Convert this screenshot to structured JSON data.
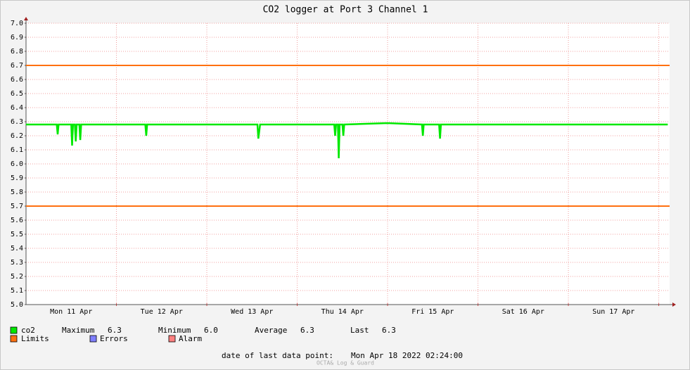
{
  "chart_data": {
    "type": "line",
    "title": "CO2 logger at Port 3 Channel 1",
    "x": [
      0,
      0.34,
      0.35,
      0.36,
      0.5,
      0.51,
      0.52,
      0.54,
      0.55,
      0.56,
      0.59,
      0.6,
      0.61,
      1.0,
      1.32,
      1.33,
      1.34,
      2.0,
      2.56,
      2.57,
      2.59,
      3.0,
      3.41,
      3.42,
      3.43,
      3.45,
      3.46,
      3.47,
      3.5,
      3.51,
      3.52,
      4.0,
      4.38,
      4.39,
      4.4,
      4.57,
      4.58,
      4.59,
      5.0,
      6.0,
      7.0,
      7.1
    ],
    "series": [
      {
        "name": "co2",
        "color": "#00e800",
        "values": [
          6.28,
          6.28,
          6.21,
          6.28,
          6.28,
          6.13,
          6.28,
          6.28,
          6.16,
          6.28,
          6.28,
          6.17,
          6.28,
          6.28,
          6.28,
          6.2,
          6.28,
          6.28,
          6.28,
          6.18,
          6.28,
          6.28,
          6.28,
          6.2,
          6.28,
          6.28,
          6.04,
          6.28,
          6.28,
          6.2,
          6.28,
          6.29,
          6.28,
          6.2,
          6.28,
          6.28,
          6.18,
          6.28,
          6.28,
          6.28,
          6.28,
          6.28
        ]
      }
    ],
    "limits": {
      "name": "Limits",
      "color": "#ff7010",
      "levels": [
        6.7,
        5.7
      ]
    },
    "legend_extra": [
      {
        "name": "Errors",
        "color": "#7f7fff"
      },
      {
        "name": "Alarm",
        "color": "#ff7f7f"
      }
    ],
    "stats": [
      {
        "label": "Maximum",
        "value": "6.3"
      },
      {
        "label": "Minimum",
        "value": "6.0"
      },
      {
        "label": "Average",
        "value": "6.3"
      },
      {
        "label": "Last",
        "value": "6.3"
      }
    ],
    "xlim": [
      0,
      7.12
    ],
    "xticks": [
      {
        "value": 0.5,
        "label": "Mon 11 Apr"
      },
      {
        "value": 1.5,
        "label": "Tue 12 Apr"
      },
      {
        "value": 2.5,
        "label": "Wed 13 Apr"
      },
      {
        "value": 3.5,
        "label": "Thu 14 Apr"
      },
      {
        "value": 4.5,
        "label": "Fri 15 Apr"
      },
      {
        "value": 5.5,
        "label": "Sat 16 Apr"
      },
      {
        "value": 6.5,
        "label": "Sun 17 Apr"
      }
    ],
    "x_major_grid": [
      1,
      2,
      3,
      4,
      5,
      6,
      7
    ],
    "ylim": [
      5.0,
      7.0
    ],
    "yticks": [
      {
        "value": 5.0,
        "label": "5.0"
      },
      5.1,
      5.2,
      5.3,
      5.4,
      5.5,
      5.6,
      5.7,
      5.8,
      5.9,
      {
        "value": 6.0,
        "label": "6.0"
      },
      6.1,
      6.2,
      6.3,
      6.4,
      6.5,
      6.6,
      6.7,
      6.8,
      6.9,
      {
        "value": 7.0,
        "label": "7.0"
      }
    ],
    "grid": true,
    "footer": {
      "label": "date of last data point:",
      "value": "Mon Apr 18 2022 02:24:00"
    },
    "watermark": "OCTA& Log & Guard"
  }
}
